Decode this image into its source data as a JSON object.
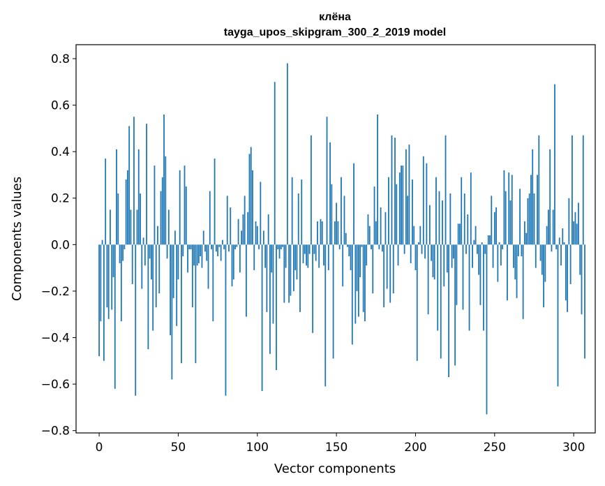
{
  "chart_data": {
    "type": "bar",
    "title": "клёна",
    "subtitle": "tayga_upos_skipgram_300_2_2019 model",
    "xlabel": "Vector components",
    "ylabel": "Components values",
    "xlim": [
      -14.6,
      313.6
    ],
    "ylim": [
      -0.81,
      0.86
    ],
    "xticks": [
      0,
      50,
      100,
      150,
      200,
      250,
      300
    ],
    "yticks": [
      -0.8,
      -0.6,
      -0.4,
      -0.2,
      0.0,
      0.2,
      0.4,
      0.6,
      0.8
    ],
    "ytick_labels": [
      "−0.8",
      "−0.6",
      "−0.4",
      "−0.2",
      "0.0",
      "0.2",
      "0.4",
      "0.6",
      "0.8"
    ],
    "bar_color": "#1f77b4",
    "grid": false,
    "values": [
      -0.48,
      -0.33,
      0.02,
      -0.5,
      0.37,
      -0.27,
      -0.32,
      0.15,
      -0.28,
      -0.14,
      -0.62,
      0.41,
      0.22,
      -0.08,
      -0.33,
      -0.07,
      -0.02,
      0.28,
      0.32,
      0.51,
      0.15,
      -0.17,
      0.55,
      -0.65,
      0.15,
      0.41,
      0.22,
      -0.19,
      0.03,
      -0.09,
      0.52,
      -0.45,
      -0.06,
      -0.15,
      -0.37,
      0.34,
      -0.27,
      0.08,
      -0.21,
      0.23,
      0.29,
      0.56,
      0.38,
      -0.06,
      0.15,
      -0.39,
      -0.58,
      -0.23,
      0.06,
      -0.35,
      -0.15,
      0.32,
      -0.51,
      -0.05,
      0.34,
      0.25,
      -0.12,
      -0.02,
      -0.02,
      -0.27,
      -0.09,
      -0.51,
      -0.09,
      -0.08,
      -0.05,
      -0.1,
      0.06,
      -0.03,
      -0.07,
      -0.19,
      0.23,
      -0.02,
      -0.33,
      0.37,
      -0.03,
      -0.05,
      -0.01,
      -0.07,
      0.02,
      -0.02,
      -0.65,
      0.21,
      -0.03,
      0.16,
      -0.18,
      -0.15,
      -0.02,
      -0.01,
      0.11,
      -0.12,
      0.06,
      0.13,
      0.21,
      -0.31,
      0.14,
      0.39,
      0.42,
      0.32,
      -0.11,
      0.1,
      0.08,
      -0.02,
      0.27,
      -0.63,
      0.06,
      -0.1,
      -0.29,
      0.13,
      -0.47,
      -0.12,
      -0.34,
      0.7,
      -0.54,
      -0.02,
      -0.06,
      -0.02,
      -0.01,
      -0.25,
      -0.1,
      0.78,
      -0.25,
      -0.22,
      0.29,
      -0.2,
      -0.11,
      -0.15,
      0.22,
      -0.29,
      0.28,
      -0.08,
      -0.04,
      -0.09,
      -0.1,
      -0.04,
      0.47,
      -0.38,
      -0.04,
      -0.07,
      0.1,
      -0.1,
      0.11,
      0.1,
      -0.09,
      -0.61,
      0.55,
      -0.11,
      0.44,
      0.26,
      -0.49,
      0.1,
      0.18,
      0.1,
      -0.02,
      0.29,
      -0.18,
      0.21,
      0.05,
      -0.01,
      -0.05,
      -0.11,
      -0.43,
      0.35,
      -0.34,
      -0.2,
      -0.31,
      -0.14,
      -0.01,
      -0.29,
      -0.33,
      -0.09,
      0.13,
      0.08,
      -0.02,
      -0.21,
      0.25,
      0.1,
      0.56,
      -0.02,
      0.16,
      -0.03,
      -0.27,
      0.14,
      -0.19,
      0.29,
      -0.25,
      0.47,
      -0.21,
      0.46,
      0.26,
      -0.09,
      0.31,
      0.34,
      0.34,
      -0.04,
      0.41,
      0.21,
      0.43,
      -0.08,
      0.28,
      0.08,
      -0.11,
      -0.5,
      0.01,
      0.08,
      -0.04,
      0.38,
      -0.06,
      0.35,
      -0.3,
      0.17,
      -0.07,
      -0.14,
      -0.15,
      0.29,
      -0.37,
      0.23,
      -0.49,
      0.19,
      -0.18,
      0.47,
      -0.12,
      -0.57,
      0.22,
      -0.1,
      -0.06,
      -0.52,
      -0.26,
      0.09,
      0.09,
      0.29,
      -0.28,
      0.22,
      -0.04,
      0.13,
      -0.37,
      0.31,
      -0.1,
      0.02,
      0.08,
      -0.04,
      -0.13,
      -0.26,
      0.01,
      -0.37,
      -0.04,
      -0.73,
      0.04,
      0.04,
      0.21,
      -0.1,
      0.14,
      0.16,
      -0.16,
      0.01,
      -0.09,
      -0.02,
      0.32,
      0.23,
      -0.24,
      0.31,
      0.19,
      0.3,
      -0.1,
      -0.15,
      -0.23,
      -0.05,
      0.24,
      -0.05,
      -0.32,
      0.1,
      0.05,
      0.2,
      0.22,
      0.3,
      0.41,
      0.22,
      -0.1,
      0.3,
      0.47,
      -0.07,
      -0.13,
      -0.27,
      -0.16,
      0.08,
      0.15,
      0.41,
      -0.03,
      0.15,
      0.69,
      -0.02,
      -0.61,
      0.03,
      -0.09,
      0.07,
      0.01,
      -0.24,
      -0.29,
      0.2,
      -0.17,
      0.47,
      0.1,
      0.14,
      0.09,
      0.18,
      -0.13,
      -0.3,
      0.47,
      -0.49
    ]
  }
}
